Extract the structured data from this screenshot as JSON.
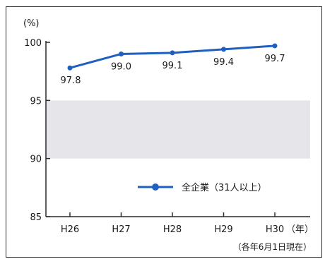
{
  "chart_data": {
    "type": "line",
    "title": "",
    "xlabel": "",
    "ylabel": "",
    "y_unit": "(%)",
    "x_unit": "（年）",
    "note": "（各年6月1日現在）",
    "categories": [
      "H26",
      "H27",
      "H28",
      "H29",
      "H30"
    ],
    "series": [
      {
        "name": "全企業（31人以上）",
        "values": [
          97.8,
          99.0,
          99.1,
          99.4,
          99.7
        ]
      }
    ],
    "data_labels": [
      "97.8",
      "99.0",
      "99.1",
      "99.4",
      "99.7"
    ],
    "ylim": [
      85,
      100
    ],
    "yticks": [
      85,
      90,
      95,
      100
    ],
    "shaded_band": [
      90,
      95
    ],
    "grid": false,
    "legend_position": "bottom-right",
    "colors": {
      "series": "#1f5fbf",
      "band": "#e6e6ea",
      "axis": "#2a2a2a"
    }
  }
}
